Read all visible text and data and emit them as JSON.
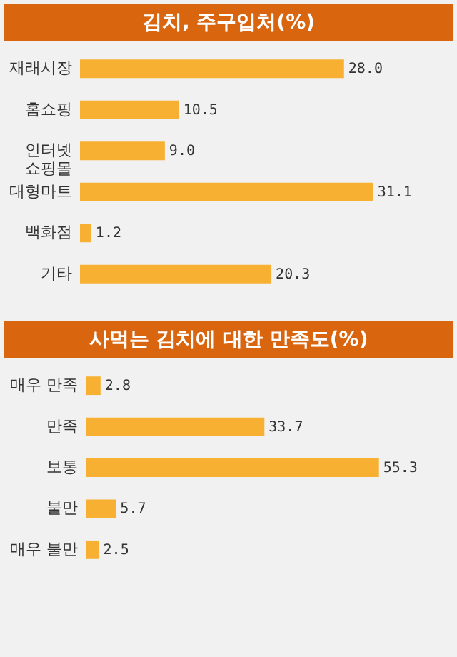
{
  "chart_data": [
    {
      "type": "bar",
      "title": "김치, 주구입처(%)",
      "orientation": "horizontal",
      "color": "#f7b032",
      "categories": [
        "재래시장",
        "홈쇼핑",
        "인터넷 쇼핑몰",
        "대형마트",
        "백화점",
        "기타"
      ],
      "values": [
        28.0,
        10.5,
        9.0,
        31.1,
        1.2,
        20.3
      ],
      "value_labels": [
        "28.0",
        "10.5",
        "9.0",
        "31.1",
        "1.2",
        "20.3"
      ]
    },
    {
      "type": "bar",
      "title": "사먹는 김치에 대한 만족도(%)",
      "orientation": "horizontal",
      "color": "#f7b032",
      "categories": [
        "매우 만족",
        "만족",
        "보통",
        "불만",
        "매우 불만"
      ],
      "values": [
        2.8,
        33.7,
        55.3,
        5.7,
        2.5
      ],
      "value_labels": [
        "2.8",
        "33.7",
        "55.3",
        "5.7",
        "2.5"
      ]
    }
  ]
}
